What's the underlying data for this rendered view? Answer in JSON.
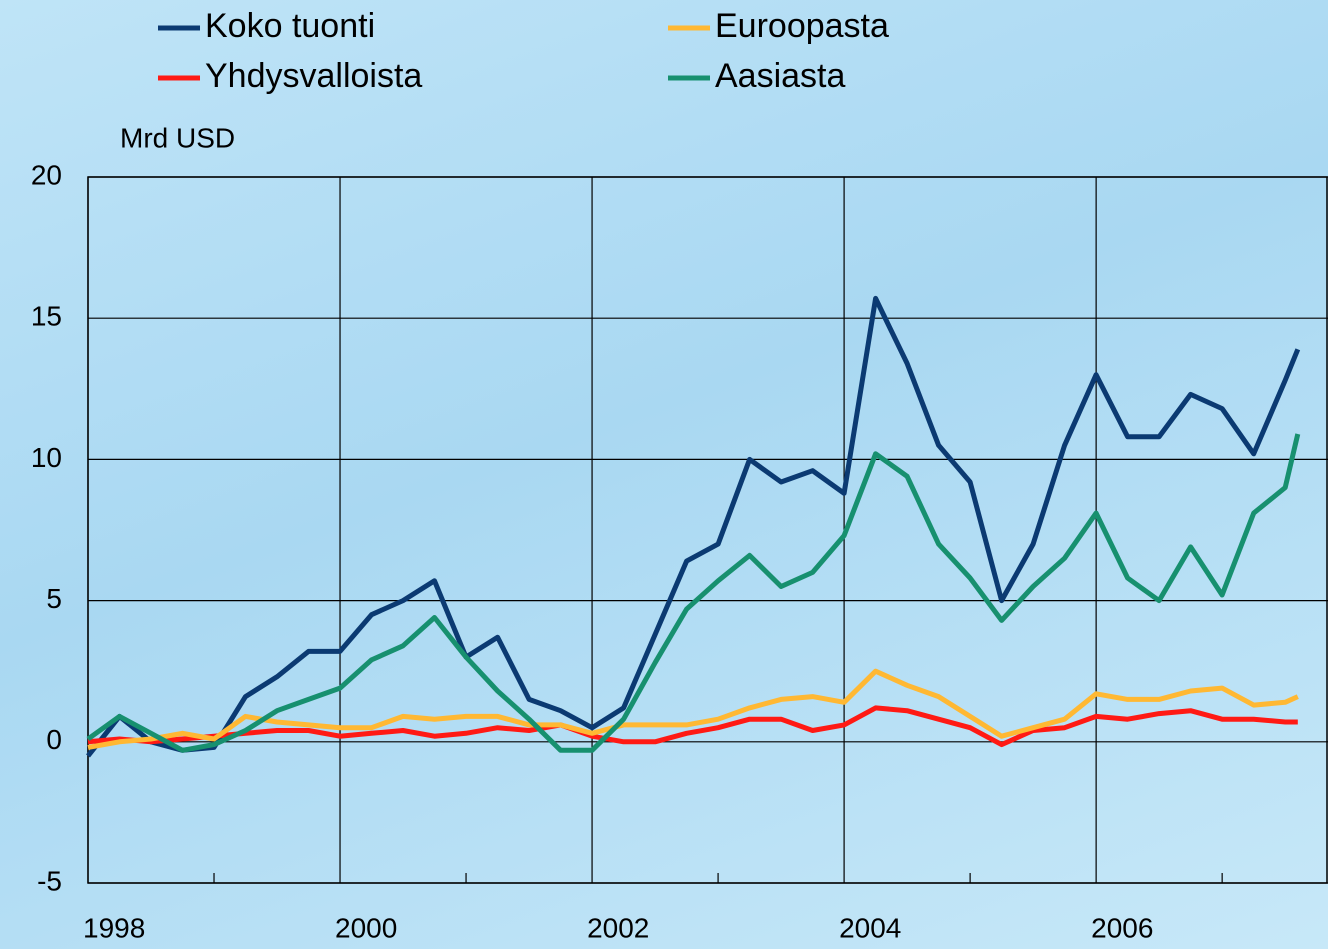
{
  "chart_data": {
    "type": "line",
    "ylabel": "Mrd USD",
    "xlim": [
      1998,
      2007.84
    ],
    "ylim": [
      -5,
      20
    ],
    "xticks": [
      1998,
      2000,
      2002,
      2004,
      2006
    ],
    "xminorticks": [
      1999,
      2001,
      2003,
      2005,
      2007
    ],
    "yticks": [
      -5,
      0,
      5,
      10,
      15,
      20
    ],
    "grid": true,
    "x": [
      1998,
      1998.25,
      1998.5,
      1998.75,
      1999,
      1999.25,
      1999.5,
      1999.75,
      2000,
      2000.25,
      2000.5,
      2000.75,
      2001,
      2001.25,
      2001.5,
      2001.75,
      2002,
      2002.25,
      2002.5,
      2002.75,
      2003,
      2003.25,
      2003.5,
      2003.75,
      2004,
      2004.25,
      2004.5,
      2004.75,
      2005,
      2005.25,
      2005.5,
      2005.75,
      2006,
      2006.25,
      2006.5,
      2006.75,
      2007,
      2007.25,
      2007.5,
      2007.6
    ],
    "series": [
      {
        "name": "Koko tuonti",
        "color": "#0b3a72",
        "values": [
          -0.5,
          0.9,
          0.0,
          -0.3,
          -0.2,
          1.6,
          2.3,
          3.2,
          3.2,
          4.5,
          5.0,
          5.7,
          3.0,
          3.7,
          1.5,
          1.1,
          0.5,
          1.2,
          3.8,
          6.4,
          7.0,
          10.0,
          9.2,
          9.6,
          8.8,
          15.7,
          13.4,
          10.5,
          9.2,
          5.0,
          7.0,
          10.5,
          13.0,
          10.8,
          10.8,
          12.3,
          11.8,
          10.2,
          12.8,
          13.9
        ]
      },
      {
        "name": "Yhdysvalloista",
        "color": "#ff1a14",
        "values": [
          0.0,
          0.1,
          0.0,
          0.1,
          0.2,
          0.3,
          0.4,
          0.4,
          0.2,
          0.3,
          0.4,
          0.2,
          0.3,
          0.5,
          0.4,
          0.6,
          0.2,
          0.0,
          0.0,
          0.3,
          0.5,
          0.8,
          0.8,
          0.4,
          0.6,
          1.2,
          1.1,
          0.8,
          0.5,
          -0.1,
          0.4,
          0.5,
          0.9,
          0.8,
          1.0,
          1.1,
          0.8,
          0.8,
          0.7,
          0.7
        ]
      },
      {
        "name": "Euroopasta",
        "color": "#ffb833",
        "values": [
          -0.2,
          0.0,
          0.1,
          0.3,
          0.1,
          0.9,
          0.7,
          0.6,
          0.5,
          0.5,
          0.9,
          0.8,
          0.9,
          0.9,
          0.6,
          0.6,
          0.3,
          0.6,
          0.6,
          0.6,
          0.8,
          1.2,
          1.5,
          1.6,
          1.4,
          2.5,
          2.0,
          1.6,
          0.9,
          0.2,
          0.5,
          0.8,
          1.7,
          1.5,
          1.5,
          1.8,
          1.9,
          1.3,
          1.4,
          1.6
        ]
      },
      {
        "name": "Aasiasta",
        "color": "#17906f",
        "values": [
          0.1,
          0.9,
          0.3,
          -0.3,
          -0.1,
          0.4,
          1.1,
          1.5,
          1.9,
          2.9,
          3.4,
          4.4,
          3.0,
          1.8,
          0.8,
          -0.3,
          -0.3,
          0.8,
          2.8,
          4.7,
          5.7,
          6.6,
          5.5,
          6.0,
          7.3,
          10.2,
          9.4,
          7.0,
          5.8,
          4.3,
          5.5,
          6.5,
          8.1,
          5.8,
          5.0,
          6.9,
          5.2,
          8.1,
          9.0,
          10.9
        ]
      }
    ]
  }
}
